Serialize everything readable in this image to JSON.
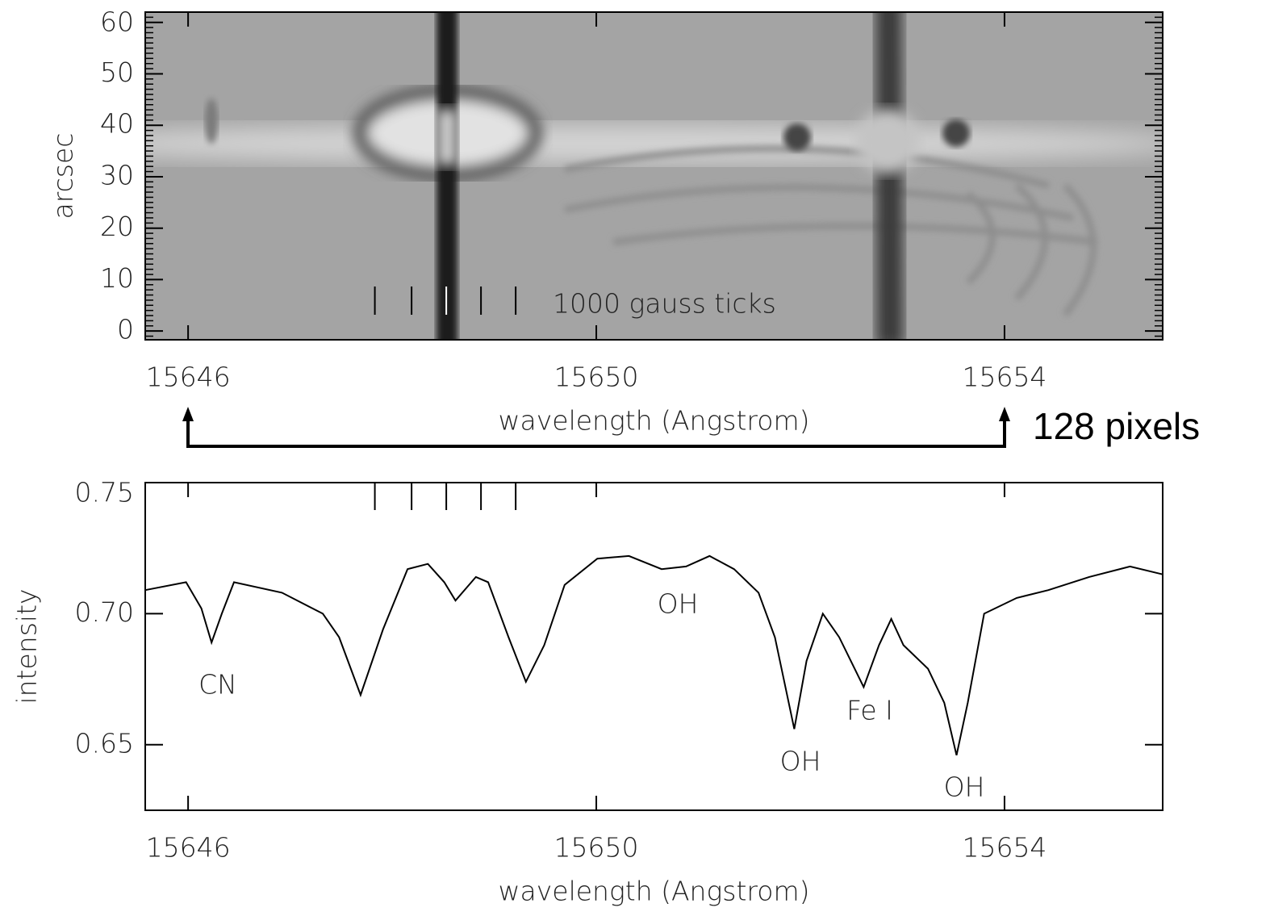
{
  "chart_data": [
    {
      "type": "image",
      "xlabel": "wavelength (Angstrom)",
      "ylabel": "arcsec",
      "xlim": [
        15645.58,
        15655.55
      ],
      "ylim": [
        -1.7,
        62
      ],
      "xticks": [
        15646,
        15650,
        15654
      ],
      "yticks": [
        0,
        10,
        20,
        30,
        40,
        50,
        60
      ],
      "yminor_step": 1,
      "marker_ticks": [
        15647.83,
        15648.19,
        15648.53,
        15648.87,
        15649.21
      ],
      "marker_label": "1000 gauss ticks",
      "annotation": "128 pixels"
    },
    {
      "type": "line",
      "xlabel": "wavelength (Angstrom)",
      "ylabel": "intensity",
      "xlim": [
        15645.58,
        15655.55
      ],
      "ylim": [
        0.625,
        0.75
      ],
      "xticks": [
        15646,
        15650,
        15654
      ],
      "yticks": [
        0.65,
        {
          "value": 0.7,
          "label": "0.70"
        },
        0.75
      ],
      "x": [
        15645.58,
        15645.98,
        15646.13,
        15646.23,
        15646.33,
        15646.45,
        15646.92,
        15647.32,
        15647.48,
        15647.69,
        15647.91,
        15648.15,
        15648.35,
        15648.51,
        15648.62,
        15648.82,
        15648.94,
        15649.14,
        15649.31,
        15649.49,
        15649.69,
        15650.01,
        15650.32,
        15650.64,
        15650.88,
        15651.11,
        15651.35,
        15651.59,
        15651.75,
        15651.94,
        15652.06,
        15652.22,
        15652.38,
        15652.62,
        15652.77,
        15652.89,
        15653.01,
        15653.25,
        15653.41,
        15653.53,
        15653.64,
        15653.8,
        15654.12,
        15654.43,
        15654.83,
        15655.23,
        15655.55
      ],
      "series": [
        {
          "color": "#000000",
          "values": [
            0.709,
            0.712,
            0.702,
            0.689,
            0.7,
            0.712,
            0.708,
            0.7,
            0.691,
            0.669,
            0.694,
            0.717,
            0.719,
            0.712,
            0.705,
            0.714,
            0.712,
            0.691,
            0.674,
            0.688,
            0.711,
            0.721,
            0.722,
            0.717,
            0.718,
            0.722,
            0.717,
            0.708,
            0.691,
            0.656,
            0.682,
            0.7,
            0.691,
            0.672,
            0.688,
            0.698,
            0.688,
            0.679,
            0.666,
            0.646,
            0.666,
            0.7,
            0.706,
            0.709,
            0.714,
            0.718,
            0.715
          ]
        }
      ],
      "marker_ticks": [
        15647.83,
        15648.19,
        15648.53,
        15648.87,
        15649.21
      ],
      "annotations": [
        "CN",
        "OH",
        "OH",
        "Fe I",
        "OH"
      ]
    }
  ]
}
